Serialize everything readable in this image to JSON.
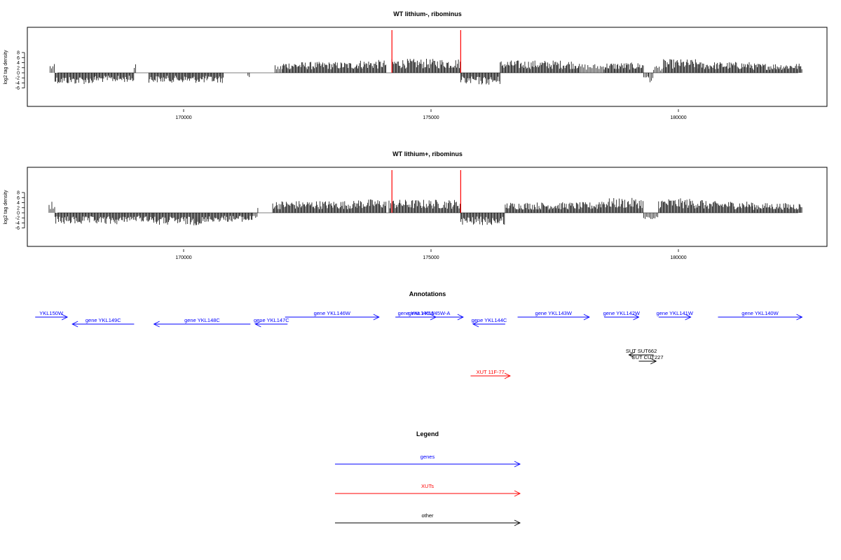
{
  "chart_data": [
    {
      "type": "bar",
      "title": "WT lithium-, ribominus",
      "xlabel": "",
      "ylabel": "log2 tag density",
      "xlim": [
        167000,
        182600
      ],
      "ylim": [
        -6,
        9
      ],
      "x_ticks": [
        "170000",
        "175000",
        "180000"
      ],
      "y_ticks": [
        "8",
        "6",
        "4",
        "2",
        "0",
        "-2",
        "-4",
        "-6"
      ],
      "grid": false,
      "markers": [
        174210,
        175600
      ],
      "segments": [
        {
          "start": 167300,
          "end": 167400,
          "value": 2.3
        },
        {
          "start": 167400,
          "end": 168200,
          "value": -3.0
        },
        {
          "start": 168200,
          "end": 169000,
          "value": -2.5
        },
        {
          "start": 169000,
          "end": 169050,
          "value": 2.6
        },
        {
          "start": 169300,
          "end": 170100,
          "value": -2.6
        },
        {
          "start": 170100,
          "end": 170800,
          "value": -2.7
        },
        {
          "start": 171300,
          "end": 171350,
          "value": -1.6
        },
        {
          "start": 171850,
          "end": 172000,
          "value": 2.0
        },
        {
          "start": 172000,
          "end": 173500,
          "value": 2.9
        },
        {
          "start": 173500,
          "end": 174100,
          "value": 3.4
        },
        {
          "start": 174210,
          "end": 175600,
          "value": 3.7
        },
        {
          "start": 175600,
          "end": 176400,
          "value": -3.2
        },
        {
          "start": 176400,
          "end": 178000,
          "value": 3.3
        },
        {
          "start": 178000,
          "end": 178500,
          "value": 2.4
        },
        {
          "start": 178500,
          "end": 179300,
          "value": 2.7
        },
        {
          "start": 179300,
          "end": 179400,
          "value": -2.0
        },
        {
          "start": 179400,
          "end": 179500,
          "value": -2.6
        },
        {
          "start": 179500,
          "end": 179700,
          "value": 2.0
        },
        {
          "start": 179700,
          "end": 180400,
          "value": 3.6
        },
        {
          "start": 180400,
          "end": 181500,
          "value": 2.9
        },
        {
          "start": 181500,
          "end": 182500,
          "value": 2.5
        }
      ]
    },
    {
      "type": "bar",
      "title": "WT lithium+, ribominus",
      "xlabel": "",
      "ylabel": "log2 tag density",
      "xlim": [
        167000,
        182600
      ],
      "ylim": [
        -6,
        9
      ],
      "x_ticks": [
        "170000",
        "175000",
        "180000"
      ],
      "y_ticks": [
        "8",
        "6",
        "4",
        "2",
        "0",
        "-2",
        "-4",
        "-6"
      ],
      "grid": false,
      "markers": [
        174210,
        175600
      ],
      "segments": [
        {
          "start": 167280,
          "end": 167400,
          "value": 3.1
        },
        {
          "start": 167400,
          "end": 168800,
          "value": -3.1
        },
        {
          "start": 168800,
          "end": 169400,
          "value": -2.4
        },
        {
          "start": 169400,
          "end": 170500,
          "value": -3.3
        },
        {
          "start": 170500,
          "end": 171400,
          "value": -2.4
        },
        {
          "start": 171400,
          "end": 171500,
          "value": -1.4
        },
        {
          "start": 171500,
          "end": 171520,
          "value": 2.1
        },
        {
          "start": 171800,
          "end": 173500,
          "value": 3.2
        },
        {
          "start": 173500,
          "end": 174100,
          "value": 3.6
        },
        {
          "start": 174150,
          "end": 175600,
          "value": 3.5
        },
        {
          "start": 175600,
          "end": 176500,
          "value": -3.3
        },
        {
          "start": 176500,
          "end": 178400,
          "value": 2.8
        },
        {
          "start": 178400,
          "end": 179300,
          "value": 3.9
        },
        {
          "start": 179300,
          "end": 179600,
          "value": -1.8
        },
        {
          "start": 179600,
          "end": 180500,
          "value": 3.8
        },
        {
          "start": 180500,
          "end": 181500,
          "value": 3.1
        },
        {
          "start": 181500,
          "end": 182500,
          "value": 2.6
        }
      ]
    }
  ],
  "annotations": {
    "title": "Annotations",
    "features": [
      {
        "label": "YKL150W",
        "start": 167000,
        "end": 167650,
        "strand": "+",
        "kind": "genes",
        "row": 0
      },
      {
        "label": "gene YKL149C",
        "start": 167750,
        "end": 169000,
        "strand": "-",
        "kind": "genes",
        "row": 1
      },
      {
        "label": "gene YKL148C",
        "start": 169400,
        "end": 171350,
        "strand": "-",
        "kind": "genes",
        "row": 1
      },
      {
        "label": "gene YKL147C",
        "start": 171450,
        "end": 172100,
        "strand": "-",
        "kind": "genes",
        "row": 1
      },
      {
        "label": "gene YKL146W",
        "start": 172050,
        "end": 173950,
        "strand": "+",
        "kind": "genes",
        "row": 0
      },
      {
        "label": "gene YKL145W",
        "start": 174300,
        "end": 175100,
        "strand": "+",
        "kind": "genes",
        "row": 0
      },
      {
        "label": "gene YKL145W-A",
        "start": 174280,
        "end": 175650,
        "strand": "+",
        "kind": "genes",
        "row": 0
      },
      {
        "label": "gene YKL144C",
        "start": 175850,
        "end": 176500,
        "strand": "-",
        "kind": "genes",
        "row": 1
      },
      {
        "label": "gene YKL143W",
        "start": 176750,
        "end": 178200,
        "strand": "+",
        "kind": "genes",
        "row": 0
      },
      {
        "label": "gene YKL142W",
        "start": 178500,
        "end": 179200,
        "strand": "+",
        "kind": "genes",
        "row": 0
      },
      {
        "label": "gene YKL141W",
        "start": 179600,
        "end": 180250,
        "strand": "+",
        "kind": "genes",
        "row": 0
      },
      {
        "label": "gene YKL140W",
        "start": 180800,
        "end": 182500,
        "strand": "+",
        "kind": "genes",
        "row": 0
      },
      {
        "label": "SUT SUT662",
        "start": 179000,
        "end": 179500,
        "strand": "-",
        "kind": "other",
        "row": 2
      },
      {
        "label": "CUT CUT227",
        "start": 179200,
        "end": 179550,
        "strand": "+",
        "kind": "other",
        "row": 3
      },
      {
        "label": "XUT 11F-77",
        "start": 175800,
        "end": 176600,
        "strand": "+",
        "kind": "XUTs",
        "row": 4
      }
    ]
  },
  "legend": {
    "title": "Legend",
    "items": [
      {
        "label": "genes",
        "color": "#0000ff"
      },
      {
        "label": "XUTs",
        "color": "#ff0000"
      },
      {
        "label": "other",
        "color": "#000000"
      }
    ]
  },
  "colors": {
    "genes": "#0000ff",
    "XUTs": "#ff0000",
    "other": "#000000",
    "marker": "#ff0000",
    "bars": "#000000"
  }
}
